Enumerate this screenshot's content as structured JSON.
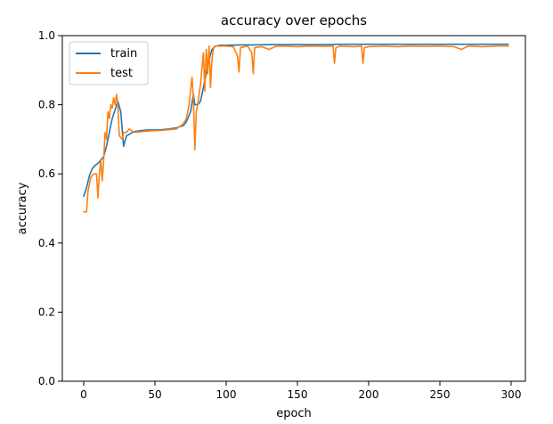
{
  "chart_data": {
    "type": "line",
    "title": "accuracy over epochs",
    "xlabel": "epoch",
    "ylabel": "accuracy",
    "xlim": [
      -15,
      310
    ],
    "ylim": [
      0.0,
      1.0
    ],
    "x_ticks": [
      0,
      50,
      100,
      150,
      200,
      250,
      300
    ],
    "x_tick_labels": [
      "0",
      "50",
      "100",
      "150",
      "200",
      "250",
      "300"
    ],
    "y_ticks": [
      0.0,
      0.2,
      0.4,
      0.6,
      0.8,
      1.0
    ],
    "y_tick_labels": [
      "0.0",
      "0.2",
      "0.4",
      "0.6",
      "0.8",
      "1.0"
    ],
    "grid": false,
    "legend_position": "upper-left",
    "series": [
      {
        "name": "train",
        "color": "#1f77b4",
        "x": [
          0,
          2,
          4,
          6,
          8,
          10,
          12,
          14,
          16,
          18,
          20,
          22,
          24,
          26,
          28,
          30,
          35,
          40,
          45,
          50,
          55,
          60,
          65,
          70,
          72,
          75,
          77,
          78,
          80,
          82,
          85,
          88,
          90,
          92,
          95,
          100,
          110,
          120,
          130,
          140,
          150,
          160,
          170,
          180,
          190,
          200,
          210,
          220,
          230,
          240,
          250,
          260,
          270,
          280,
          290,
          298
        ],
        "y": [
          0.535,
          0.56,
          0.595,
          0.615,
          0.625,
          0.63,
          0.64,
          0.65,
          0.68,
          0.72,
          0.76,
          0.785,
          0.81,
          0.78,
          0.68,
          0.71,
          0.722,
          0.725,
          0.727,
          0.727,
          0.728,
          0.73,
          0.733,
          0.74,
          0.75,
          0.78,
          0.83,
          0.8,
          0.8,
          0.81,
          0.87,
          0.93,
          0.96,
          0.968,
          0.972,
          0.972,
          0.973,
          0.973,
          0.974,
          0.974,
          0.974,
          0.974,
          0.974,
          0.975,
          0.975,
          0.975,
          0.975,
          0.975,
          0.975,
          0.975,
          0.975,
          0.975,
          0.975,
          0.975,
          0.975,
          0.975
        ]
      },
      {
        "name": "test",
        "color": "#ff7f0e",
        "x": [
          0,
          2,
          3,
          5,
          7,
          9,
          10,
          11,
          12,
          13,
          14,
          15,
          16,
          17,
          18,
          19,
          20,
          21,
          22,
          23,
          24,
          25,
          27,
          28,
          30,
          32,
          35,
          40,
          45,
          50,
          55,
          60,
          65,
          70,
          72,
          74,
          76,
          77,
          78,
          79,
          80,
          82,
          84,
          85,
          86,
          87,
          88,
          89,
          90,
          91,
          92,
          93,
          95,
          98,
          100,
          105,
          108,
          109,
          110,
          115,
          118,
          119,
          120,
          125,
          130,
          135,
          140,
          150,
          160,
          170,
          175,
          176,
          177,
          180,
          190,
          195,
          196,
          197,
          200,
          210,
          220,
          230,
          240,
          250,
          260,
          265,
          270,
          280,
          290,
          298
        ],
        "y": [
          0.49,
          0.49,
          0.55,
          0.59,
          0.6,
          0.6,
          0.53,
          0.6,
          0.64,
          0.58,
          0.64,
          0.72,
          0.7,
          0.78,
          0.76,
          0.8,
          0.79,
          0.82,
          0.8,
          0.83,
          0.8,
          0.71,
          0.7,
          0.72,
          0.72,
          0.73,
          0.72,
          0.722,
          0.724,
          0.725,
          0.726,
          0.728,
          0.73,
          0.745,
          0.76,
          0.8,
          0.88,
          0.82,
          0.67,
          0.78,
          0.8,
          0.86,
          0.95,
          0.84,
          0.96,
          0.89,
          0.97,
          0.85,
          0.93,
          0.96,
          0.97,
          0.97,
          0.97,
          0.97,
          0.97,
          0.968,
          0.94,
          0.895,
          0.965,
          0.97,
          0.95,
          0.89,
          0.965,
          0.968,
          0.96,
          0.969,
          0.97,
          0.968,
          0.97,
          0.969,
          0.97,
          0.92,
          0.965,
          0.97,
          0.968,
          0.97,
          0.92,
          0.965,
          0.968,
          0.97,
          0.968,
          0.97,
          0.969,
          0.97,
          0.968,
          0.96,
          0.97,
          0.968,
          0.97,
          0.97
        ]
      }
    ]
  }
}
